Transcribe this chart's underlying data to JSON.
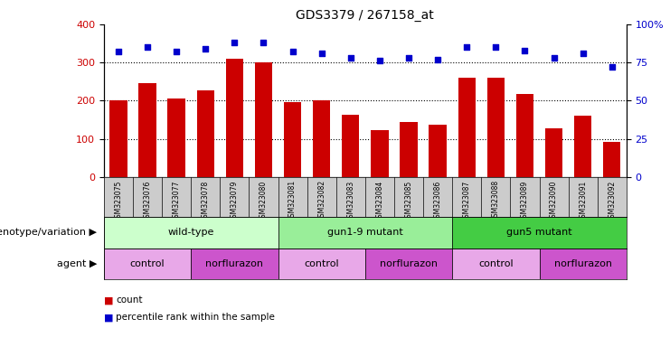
{
  "title": "GDS3379 / 267158_at",
  "samples": [
    "GSM323075",
    "GSM323076",
    "GSM323077",
    "GSM323078",
    "GSM323079",
    "GSM323080",
    "GSM323081",
    "GSM323082",
    "GSM323083",
    "GSM323084",
    "GSM323085",
    "GSM323086",
    "GSM323087",
    "GSM323088",
    "GSM323089",
    "GSM323090",
    "GSM323091",
    "GSM323092"
  ],
  "counts": [
    200,
    245,
    205,
    228,
    310,
    300,
    197,
    200,
    163,
    122,
    144,
    138,
    261,
    260,
    218,
    128,
    160,
    92
  ],
  "percentiles": [
    82,
    85,
    82,
    84,
    88,
    88,
    82,
    81,
    78,
    76,
    78,
    77,
    85,
    85,
    83,
    78,
    81,
    72
  ],
  "bar_color": "#cc0000",
  "dot_color": "#0000cc",
  "ylim_left": [
    0,
    400
  ],
  "ylim_right": [
    0,
    100
  ],
  "yticks_left": [
    0,
    100,
    200,
    300,
    400
  ],
  "yticks_right": [
    0,
    25,
    50,
    75,
    100
  ],
  "yticklabels_right": [
    "0",
    "25",
    "50",
    "75",
    "100%"
  ],
  "grid_values": [
    100,
    200,
    300
  ],
  "genotype_groups": [
    {
      "label": "wild-type",
      "start": 0,
      "end": 5,
      "color": "#ccffcc"
    },
    {
      "label": "gun1-9 mutant",
      "start": 6,
      "end": 11,
      "color": "#99ee99"
    },
    {
      "label": "gun5 mutant",
      "start": 12,
      "end": 17,
      "color": "#44cc44"
    }
  ],
  "agent_groups": [
    {
      "label": "control",
      "start": 0,
      "end": 2,
      "color": "#e8a8e8"
    },
    {
      "label": "norflurazon",
      "start": 3,
      "end": 5,
      "color": "#cc55cc"
    },
    {
      "label": "control",
      "start": 6,
      "end": 8,
      "color": "#e8a8e8"
    },
    {
      "label": "norflurazon",
      "start": 9,
      "end": 11,
      "color": "#cc55cc"
    },
    {
      "label": "control",
      "start": 12,
      "end": 14,
      "color": "#e8a8e8"
    },
    {
      "label": "norflurazon",
      "start": 15,
      "end": 17,
      "color": "#cc55cc"
    }
  ],
  "legend_items": [
    {
      "label": "count",
      "color": "#cc0000"
    },
    {
      "label": "percentile rank within the sample",
      "color": "#0000cc"
    }
  ],
  "xlabel_genotype": "genotype/variation",
  "xlabel_agent": "agent",
  "xtick_bg_color": "#cccccc",
  "background_color": "#ffffff",
  "title_fontsize": 10
}
